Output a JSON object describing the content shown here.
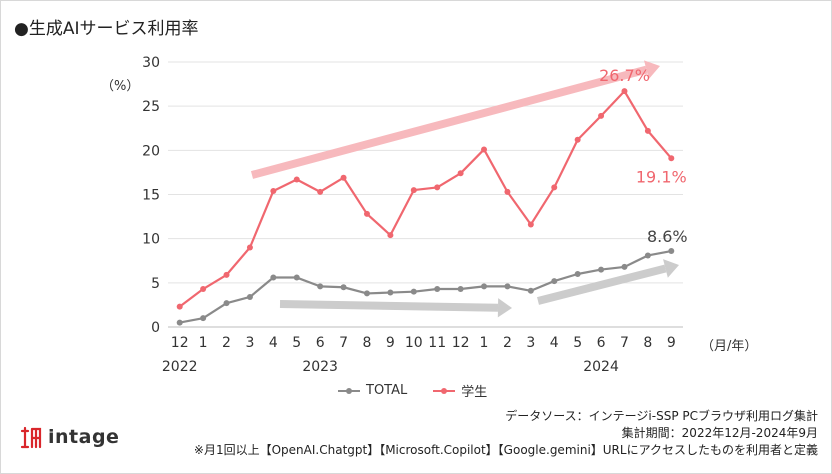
{
  "title": "●生成AIサービス利用率",
  "y_unit": "（%）",
  "x_unit": "（月/年）",
  "legend": {
    "total": "TOTAL",
    "student": "学生"
  },
  "notes": {
    "source": "データソース：インテージi-SSP PCブラウザ利用ログ集計",
    "period": "集計期間：2022年12月-2024年9月",
    "definition": "※月1回以上【OpenAI.Chatgpt】【Microsoft.Copilot】【Google.gemini】URLにアクセスしたものを利用者と定義"
  },
  "logo": {
    "text": "intage"
  },
  "colors": {
    "student": "#f0676f",
    "total": "#8a8a8a",
    "student_arrow": "#f7b9bd",
    "total_arrow": "#cccccc",
    "grid": "#e3e3e3",
    "logo_mark": "#d9262b"
  },
  "chart_data": {
    "type": "line",
    "title": "●生成AIサービス利用率",
    "xlabel": "（月/年）",
    "ylabel": "（%）",
    "ylim": [
      0,
      30
    ],
    "yticks": [
      0,
      5,
      10,
      15,
      20,
      25,
      30
    ],
    "grid": true,
    "legend_position": "bottom",
    "categories": [
      "12",
      "1",
      "2",
      "3",
      "4",
      "5",
      "6",
      "7",
      "8",
      "9",
      "10",
      "11",
      "12",
      "1",
      "2",
      "3",
      "4",
      "5",
      "6",
      "7",
      "8",
      "9"
    ],
    "year_labels": [
      {
        "label": "2022",
        "index": 0
      },
      {
        "label": "2023",
        "index": 6
      },
      {
        "label": "2024",
        "index": 18
      }
    ],
    "series": [
      {
        "name": "学生",
        "values": [
          2.3,
          4.3,
          5.9,
          9.0,
          15.4,
          16.7,
          15.3,
          16.9,
          12.8,
          10.4,
          15.5,
          15.8,
          17.4,
          20.1,
          15.3,
          11.6,
          15.8,
          21.2,
          23.9,
          26.7,
          22.2,
          19.1
        ]
      },
      {
        "name": "TOTAL",
        "values": [
          0.5,
          1.0,
          2.7,
          3.4,
          5.6,
          5.6,
          4.6,
          4.5,
          3.8,
          3.9,
          4.0,
          4.3,
          4.3,
          4.6,
          4.6,
          4.1,
          5.2,
          6.0,
          6.5,
          6.8,
          8.1,
          8.6
        ]
      }
    ],
    "annotations": [
      {
        "series": "学生",
        "index": 19,
        "text": "26.7%"
      },
      {
        "series": "学生",
        "index": 21,
        "text": "19.1%"
      },
      {
        "series": "TOTAL",
        "index": 21,
        "text": "8.6%"
      }
    ]
  }
}
